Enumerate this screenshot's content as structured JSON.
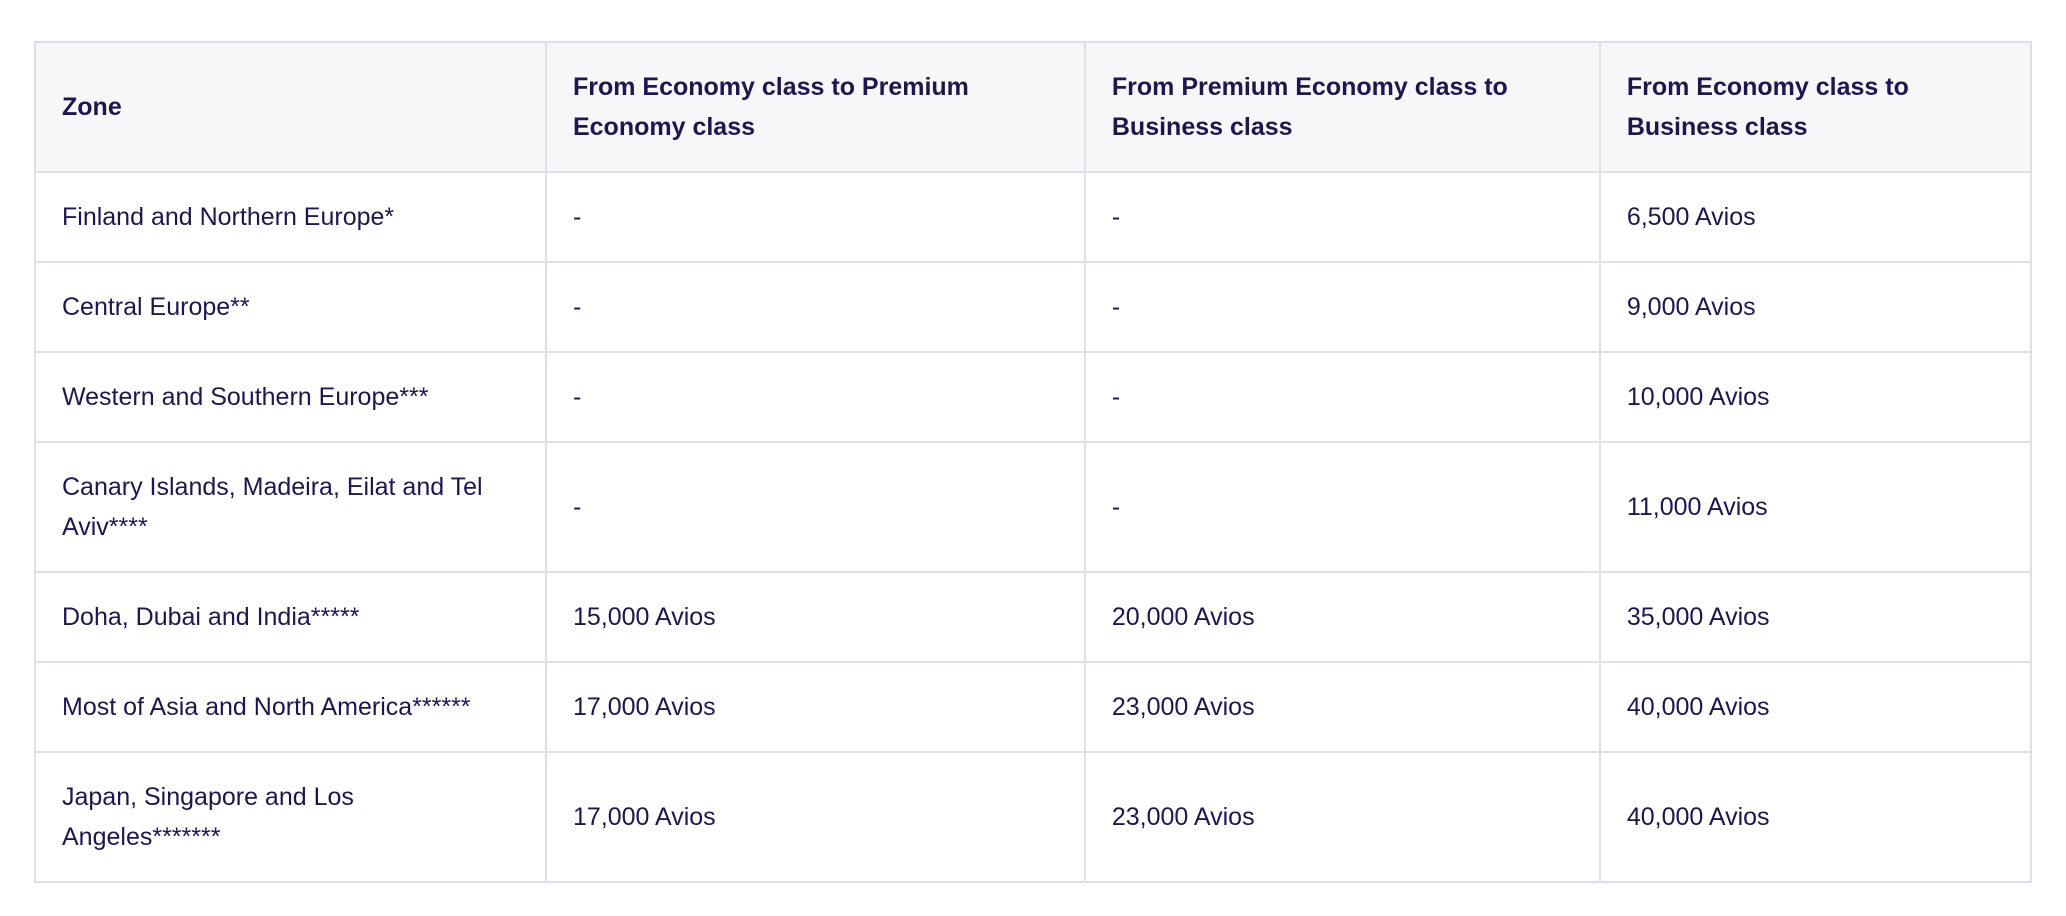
{
  "colors": {
    "text-navy": "#1c184e",
    "header-bg": "#f7f7f9",
    "border": "#dfdfea",
    "page-bg": "#ffffff"
  },
  "table": {
    "columns": [
      "Zone",
      "From Economy class to Premium\nEconomy class",
      "From Premium Economy class to\nBusiness class",
      "From Economy class to\nBusiness class"
    ],
    "rows": [
      [
        "Finland and Northern Europe*",
        "-",
        "-",
        "6,500 Avios"
      ],
      [
        "Central Europe**",
        "-",
        "-",
        "9,000 Avios"
      ],
      [
        "Western and Southern Europe***",
        "-",
        "-",
        "10,000 Avios"
      ],
      [
        "Canary Islands, Madeira, Eilat and Tel\nAviv****",
        "-",
        "-",
        "11,000 Avios"
      ],
      [
        "Doha, Dubai and India*****",
        "15,000 Avios",
        "20,000 Avios",
        "35,000 Avios"
      ],
      [
        "Most of Asia and North America******",
        "17,000 Avios",
        "23,000 Avios",
        "40,000 Avios"
      ],
      [
        "Japan, Singapore and Los\nAngeles*******",
        "17,000 Avios",
        "23,000 Avios",
        "40,000 Avios"
      ]
    ]
  }
}
